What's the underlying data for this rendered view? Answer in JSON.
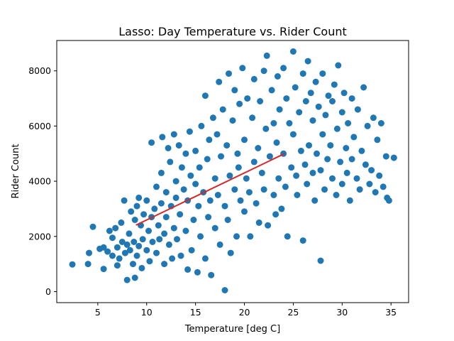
{
  "chart_data": {
    "type": "scatter",
    "title": "Lasso: Day Temperature vs. Rider Count",
    "xlabel": "Temperature [deg C]",
    "ylabel": "Rider Count",
    "xlim": [
      0.8,
      36.8
    ],
    "ylim": [
      -400,
      9100
    ],
    "xticks": [
      5,
      10,
      15,
      20,
      25,
      30,
      35
    ],
    "yticks": [
      0,
      2000,
      4000,
      6000,
      8000
    ],
    "grid": false,
    "colors": {
      "points": "#1f77b4",
      "fit_line": "#d62728"
    },
    "series": [
      {
        "kind": "points",
        "points": [
          [
            2.4,
            985
          ],
          [
            4.0,
            1000
          ],
          [
            4.1,
            1400
          ],
          [
            4.5,
            2350
          ],
          [
            5.2,
            1550
          ],
          [
            5.6,
            820
          ],
          [
            5.6,
            1600
          ],
          [
            6.0,
            1450
          ],
          [
            6.2,
            2200
          ],
          [
            6.5,
            1300
          ],
          [
            6.5,
            1950
          ],
          [
            6.8,
            2300
          ],
          [
            7.0,
            950
          ],
          [
            7.0,
            1600
          ],
          [
            7.2,
            1200
          ],
          [
            7.4,
            2500
          ],
          [
            7.5,
            1800
          ],
          [
            7.7,
            3300
          ],
          [
            7.8,
            1400
          ],
          [
            8.0,
            420
          ],
          [
            8.0,
            1700
          ],
          [
            8.2,
            2100
          ],
          [
            8.3,
            1500
          ],
          [
            8.4,
            2900
          ],
          [
            8.6,
            1000
          ],
          [
            8.7,
            1800
          ],
          [
            8.8,
            500
          ],
          [
            8.8,
            2600
          ],
          [
            9.0,
            1300
          ],
          [
            9.0,
            3100
          ],
          [
            9.2,
            1650
          ],
          [
            9.2,
            3400
          ],
          [
            9.4,
            2400
          ],
          [
            9.5,
            850
          ],
          [
            9.6,
            1900
          ],
          [
            9.7,
            2800
          ],
          [
            10.0,
            1500
          ],
          [
            10.0,
            3300
          ],
          [
            10.2,
            2200
          ],
          [
            10.3,
            1100
          ],
          [
            10.5,
            5400
          ],
          [
            10.5,
            2700
          ],
          [
            10.6,
            1800
          ],
          [
            10.8,
            3000
          ],
          [
            11.0,
            1400
          ],
          [
            11.0,
            3800
          ],
          [
            11.2,
            2400
          ],
          [
            11.3,
            1900
          ],
          [
            11.5,
            4300
          ],
          [
            11.5,
            3200
          ],
          [
            11.6,
            5600
          ],
          [
            11.8,
            2100
          ],
          [
            11.8,
            1000
          ],
          [
            12.0,
            3600
          ],
          [
            12.0,
            2700
          ],
          [
            12.2,
            5200
          ],
          [
            12.3,
            1700
          ],
          [
            12.4,
            4700
          ],
          [
            12.5,
            3100
          ],
          [
            12.6,
            1200
          ],
          [
            12.8,
            5700
          ],
          [
            12.8,
            2300
          ],
          [
            13.0,
            4000
          ],
          [
            13.0,
            3400
          ],
          [
            13.1,
            1900
          ],
          [
            13.3,
            5300
          ],
          [
            13.4,
            2800
          ],
          [
            13.5,
            1300
          ],
          [
            13.6,
            4500
          ],
          [
            13.8,
            3700
          ],
          [
            14.0,
            5000
          ],
          [
            14.0,
            2200
          ],
          [
            14.2,
            800
          ],
          [
            14.2,
            3300
          ],
          [
            14.4,
            5800
          ],
          [
            14.5,
            4200
          ],
          [
            14.6,
            1500
          ],
          [
            14.8,
            2600
          ],
          [
            15.0,
            5100
          ],
          [
            15.0,
            3900
          ],
          [
            15.2,
            700
          ],
          [
            15.3,
            3100
          ],
          [
            15.4,
            4500
          ],
          [
            15.5,
            2000
          ],
          [
            15.6,
            6000
          ],
          [
            15.8,
            3600
          ],
          [
            16.0,
            7100
          ],
          [
            16.0,
            1200
          ],
          [
            16.2,
            4800
          ],
          [
            16.3,
            2700
          ],
          [
            16.4,
            5500
          ],
          [
            16.5,
            3300
          ],
          [
            16.6,
            600
          ],
          [
            16.8,
            6300
          ],
          [
            17.0,
            4100
          ],
          [
            17.0,
            2300
          ],
          [
            17.2,
            5700
          ],
          [
            17.3,
            3500
          ],
          [
            17.4,
            7600
          ],
          [
            17.5,
            1700
          ],
          [
            17.6,
            4900
          ],
          [
            17.8,
            6600
          ],
          [
            18.0,
            3100
          ],
          [
            18.0,
            50
          ],
          [
            18.2,
            5300
          ],
          [
            18.3,
            2600
          ],
          [
            18.4,
            7900
          ],
          [
            18.5,
            4200
          ],
          [
            18.6,
            1400
          ],
          [
            18.8,
            6200
          ],
          [
            19.0,
            3700
          ],
          [
            19.0,
            7300
          ],
          [
            19.2,
            2000
          ],
          [
            19.3,
            5000
          ],
          [
            19.4,
            4500
          ],
          [
            19.5,
            6800
          ],
          [
            19.6,
            3300
          ],
          [
            19.8,
            8100
          ],
          [
            20.0,
            5500
          ],
          [
            20.0,
            2900
          ],
          [
            20.2,
            4100
          ],
          [
            20.3,
            7000
          ],
          [
            20.5,
            3600
          ],
          [
            20.6,
            2000
          ],
          [
            20.8,
            6300
          ],
          [
            21.0,
            4700
          ],
          [
            21.0,
            7700
          ],
          [
            21.2,
            3200
          ],
          [
            21.4,
            5200
          ],
          [
            21.5,
            2500
          ],
          [
            21.6,
            6900
          ],
          [
            21.8,
            4300
          ],
          [
            22.0,
            8000
          ],
          [
            22.0,
            3700
          ],
          [
            22.2,
            5900
          ],
          [
            22.3,
            8550
          ],
          [
            22.4,
            2400
          ],
          [
            22.6,
            4900
          ],
          [
            22.8,
            7300
          ],
          [
            23.0,
            3500
          ],
          [
            23.0,
            6100
          ],
          [
            23.2,
            2800
          ],
          [
            23.3,
            5400
          ],
          [
            23.4,
            7800
          ],
          [
            23.5,
            4100
          ],
          [
            23.6,
            6600
          ],
          [
            23.8,
            3000
          ],
          [
            24.0,
            8100
          ],
          [
            24.0,
            5000
          ],
          [
            24.2,
            3800
          ],
          [
            24.3,
            7000
          ],
          [
            24.4,
            2000
          ],
          [
            24.6,
            6100
          ],
          [
            24.8,
            4500
          ],
          [
            25.0,
            8700
          ],
          [
            25.0,
            5700
          ],
          [
            25.2,
            7400
          ],
          [
            25.3,
            4200
          ],
          [
            25.4,
            3500
          ],
          [
            25.6,
            6500
          ],
          [
            25.8,
            5100
          ],
          [
            26.0,
            7900
          ],
          [
            26.0,
            1850
          ],
          [
            26.2,
            4600
          ],
          [
            26.3,
            6900
          ],
          [
            26.4,
            3900
          ],
          [
            26.5,
            8350
          ],
          [
            26.6,
            5300
          ],
          [
            26.8,
            7200
          ],
          [
            27.0,
            4300
          ],
          [
            27.0,
            6200
          ],
          [
            27.2,
            3300
          ],
          [
            27.3,
            7600
          ],
          [
            27.4,
            5000
          ],
          [
            27.6,
            6700
          ],
          [
            27.8,
            1120
          ],
          [
            27.8,
            4400
          ],
          [
            28.0,
            7900
          ],
          [
            28.0,
            5700
          ],
          [
            28.2,
            3700
          ],
          [
            28.3,
            6400
          ],
          [
            28.5,
            4800
          ],
          [
            28.6,
            7100
          ],
          [
            28.8,
            5300
          ],
          [
            29.0,
            6900
          ],
          [
            29.0,
            4100
          ],
          [
            29.2,
            7500
          ],
          [
            29.4,
            3500
          ],
          [
            29.5,
            5900
          ],
          [
            29.6,
            8200
          ],
          [
            29.8,
            4700
          ],
          [
            30.0,
            6500
          ],
          [
            30.0,
            3900
          ],
          [
            30.2,
            7200
          ],
          [
            30.4,
            5200
          ],
          [
            30.5,
            4300
          ],
          [
            30.6,
            6100
          ],
          [
            30.8,
            3300
          ],
          [
            31.0,
            7000
          ],
          [
            31.0,
            4800
          ],
          [
            31.2,
            5600
          ],
          [
            31.5,
            4100
          ],
          [
            31.6,
            6600
          ],
          [
            31.8,
            3700
          ],
          [
            32.0,
            5100
          ],
          [
            32.2,
            7400
          ],
          [
            32.4,
            4600
          ],
          [
            32.6,
            6000
          ],
          [
            32.8,
            3900
          ],
          [
            33.0,
            4400
          ],
          [
            33.2,
            6300
          ],
          [
            33.4,
            3600
          ],
          [
            33.6,
            5500
          ],
          [
            33.8,
            4200
          ],
          [
            34.0,
            6100
          ],
          [
            34.2,
            3800
          ],
          [
            34.5,
            4900
          ],
          [
            34.6,
            3400
          ],
          [
            34.8,
            3300
          ],
          [
            35.3,
            4850
          ]
        ]
      },
      {
        "kind": "line",
        "points": [
          [
            8.9,
            2410
          ],
          [
            24.1,
            5000
          ]
        ]
      }
    ]
  }
}
